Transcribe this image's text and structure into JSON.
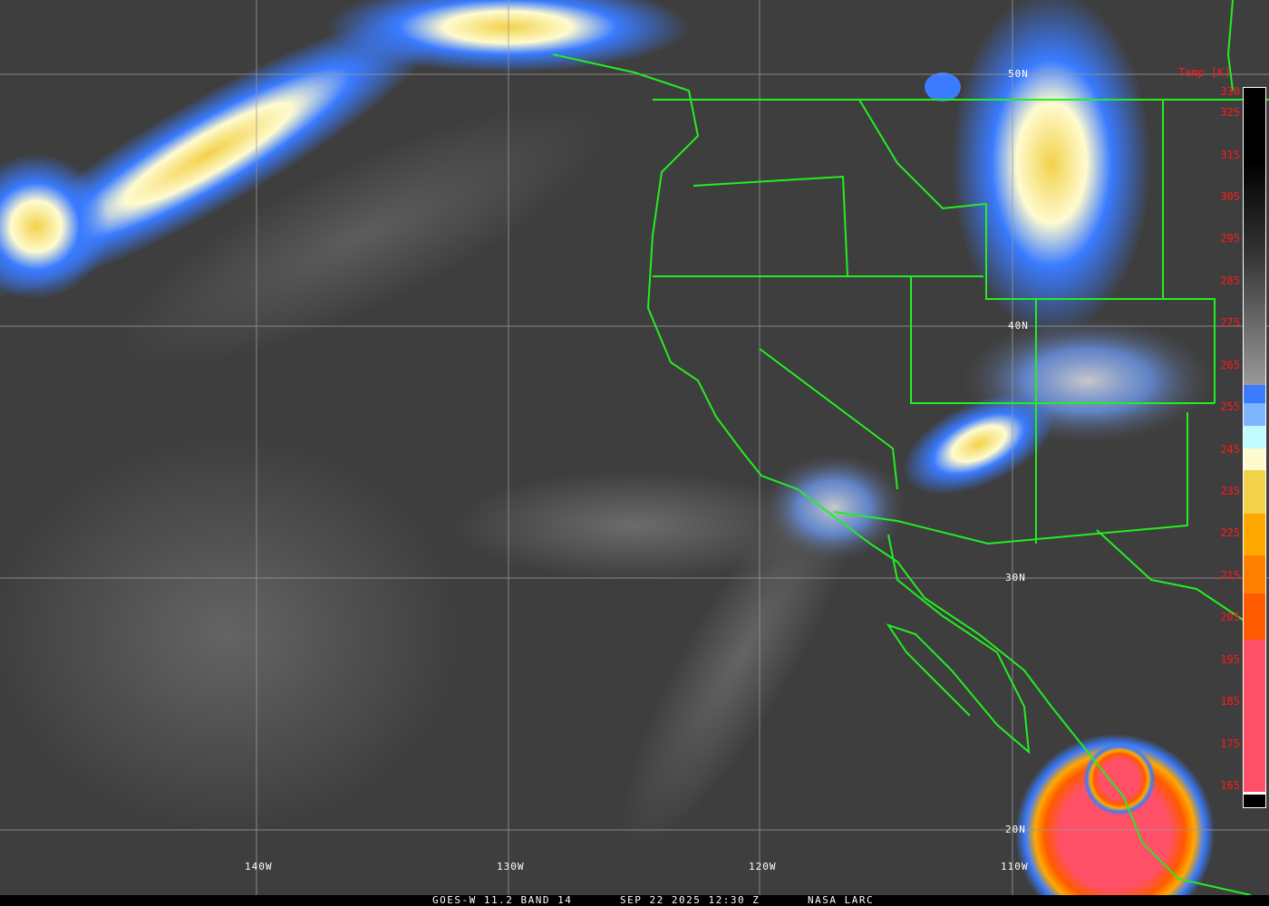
{
  "map": {
    "latitude_labels": [
      "50N",
      "40N",
      "30N",
      "20N"
    ],
    "longitude_labels": [
      "140W",
      "130W",
      "120W",
      "110W"
    ],
    "border_color": "#22ee22",
    "grid_color": "#9a9a9a"
  },
  "legend": {
    "title": "Temp [K]",
    "ticks": [
      "330",
      "325",
      "315",
      "305",
      "295",
      "285",
      "275",
      "265",
      "255",
      "245",
      "235",
      "225",
      "215",
      "205",
      "195",
      "185",
      "175",
      "165"
    ],
    "range_k": [
      165,
      330
    ],
    "tick_color": "#ff1a1a"
  },
  "footer": {
    "satellite": "GOES-W 11.2 BAND 14",
    "datetime": "SEP 22 2025 12:30 Z",
    "credit": "NASA LARC"
  }
}
